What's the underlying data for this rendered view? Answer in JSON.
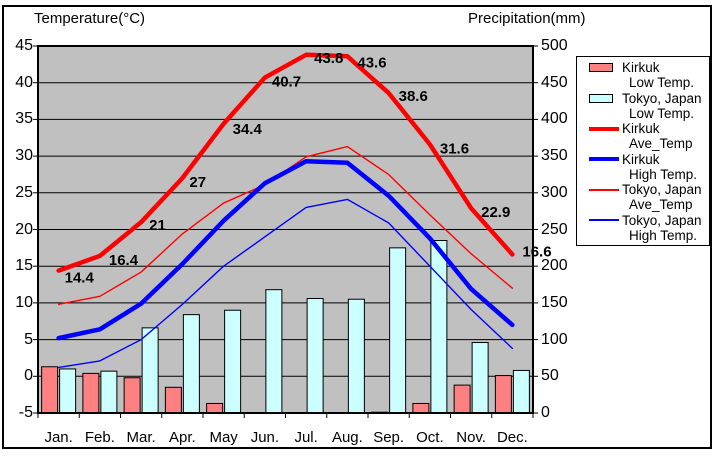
{
  "header": {
    "left_title": "Temperature(°C)",
    "right_title": "Precipitation(mm)"
  },
  "chart_data": {
    "type": "bar",
    "subtype": "climate-bars-plus-lines",
    "categories": [
      "Jan.",
      "Feb.",
      "Mar.",
      "Apr.",
      "May",
      "Jun.",
      "Jul.",
      "Aug.",
      "Sep.",
      "Oct.",
      "Nov.",
      "Dec."
    ],
    "temp_axis": {
      "min": -5,
      "max": 45,
      "step": 5,
      "tick_labels": [
        "45",
        "40",
        "35",
        "30",
        "25",
        "20",
        "15",
        "10",
        "5",
        "0",
        "-5"
      ]
    },
    "precip_axis": {
      "min": 0,
      "max": 500,
      "step": 50,
      "tick_labels": [
        "500",
        "450",
        "400",
        "350",
        "300",
        "250",
        "200",
        "150",
        "100",
        "50",
        "0"
      ]
    },
    "plot_bg": "#C0C0C0",
    "grid": "on",
    "series": [
      {
        "name": "Kirkuk Low Temp.",
        "kind": "bar",
        "axis": "precip",
        "color": "#FF8080",
        "values": [
          63,
          54,
          48,
          35,
          13,
          0,
          0,
          0,
          1,
          13,
          38,
          51
        ]
      },
      {
        "name": "Tokyo, Japan Low Temp.",
        "kind": "bar",
        "axis": "precip",
        "color": "#CCFFFF",
        "values": [
          60,
          57,
          116,
          134,
          140,
          168,
          156,
          155,
          225,
          235,
          96,
          58
        ]
      },
      {
        "name": "Tokyo, Japan High Temp.",
        "kind": "line",
        "weight": "thin",
        "axis": "temp",
        "color": "#0000FF",
        "values": [
          1.2,
          2.1,
          5.0,
          9.8,
          15.0,
          19.0,
          23.0,
          24.1,
          20.9,
          15.0,
          9.1,
          3.8
        ]
      },
      {
        "name": "Tokyo, Japan Ave_Temp",
        "kind": "line",
        "weight": "thin",
        "axis": "temp",
        "color": "#FF0000",
        "values": [
          9.8,
          10.9,
          14.2,
          19.4,
          23.6,
          26.1,
          29.9,
          31.3,
          27.5,
          22.0,
          16.7,
          12.0
        ]
      },
      {
        "name": "Kirkuk High Temp.",
        "kind": "line",
        "weight": "thick",
        "axis": "temp",
        "color": "#0000FF",
        "values": [
          5.2,
          6.4,
          9.9,
          15.3,
          21.2,
          26.3,
          29.3,
          29.1,
          24.6,
          18.8,
          11.9,
          7.0
        ]
      },
      {
        "name": "Kirkuk Ave_Temp",
        "kind": "line",
        "weight": "thick",
        "axis": "temp",
        "color": "#FF0000",
        "values": [
          14.4,
          16.4,
          21,
          27,
          34.4,
          40.7,
          43.8,
          43.6,
          38.6,
          31.6,
          22.9,
          16.6
        ],
        "point_labels": [
          "14.4",
          "16.4",
          "21",
          "27",
          "34.4",
          "40.7",
          "43.8",
          "43.6",
          "38.6",
          "31.6",
          "22.9",
          "16.6"
        ]
      }
    ],
    "legend_position": "right"
  },
  "legend": {
    "items": [
      {
        "line1": "Kirkuk",
        "line2": "Low Temp.",
        "swatch": "box",
        "color": "#FF8080"
      },
      {
        "line1": "Tokyo, Japan",
        "line2": "Low Temp.",
        "swatch": "box",
        "color": "#CCFFFF"
      },
      {
        "line1": "Kirkuk",
        "line2": "Ave_Temp",
        "swatch": "thick",
        "color": "#FF0000"
      },
      {
        "line1": "Kirkuk",
        "line2": "High Temp.",
        "swatch": "thick",
        "color": "#0000FF"
      },
      {
        "line1": "Tokyo, Japan",
        "line2": "Ave_Temp",
        "swatch": "thin",
        "color": "#FF0000"
      },
      {
        "line1": "Tokyo, Japan",
        "line2": "High Temp.",
        "swatch": "thin",
        "color": "#0000FF"
      }
    ]
  }
}
